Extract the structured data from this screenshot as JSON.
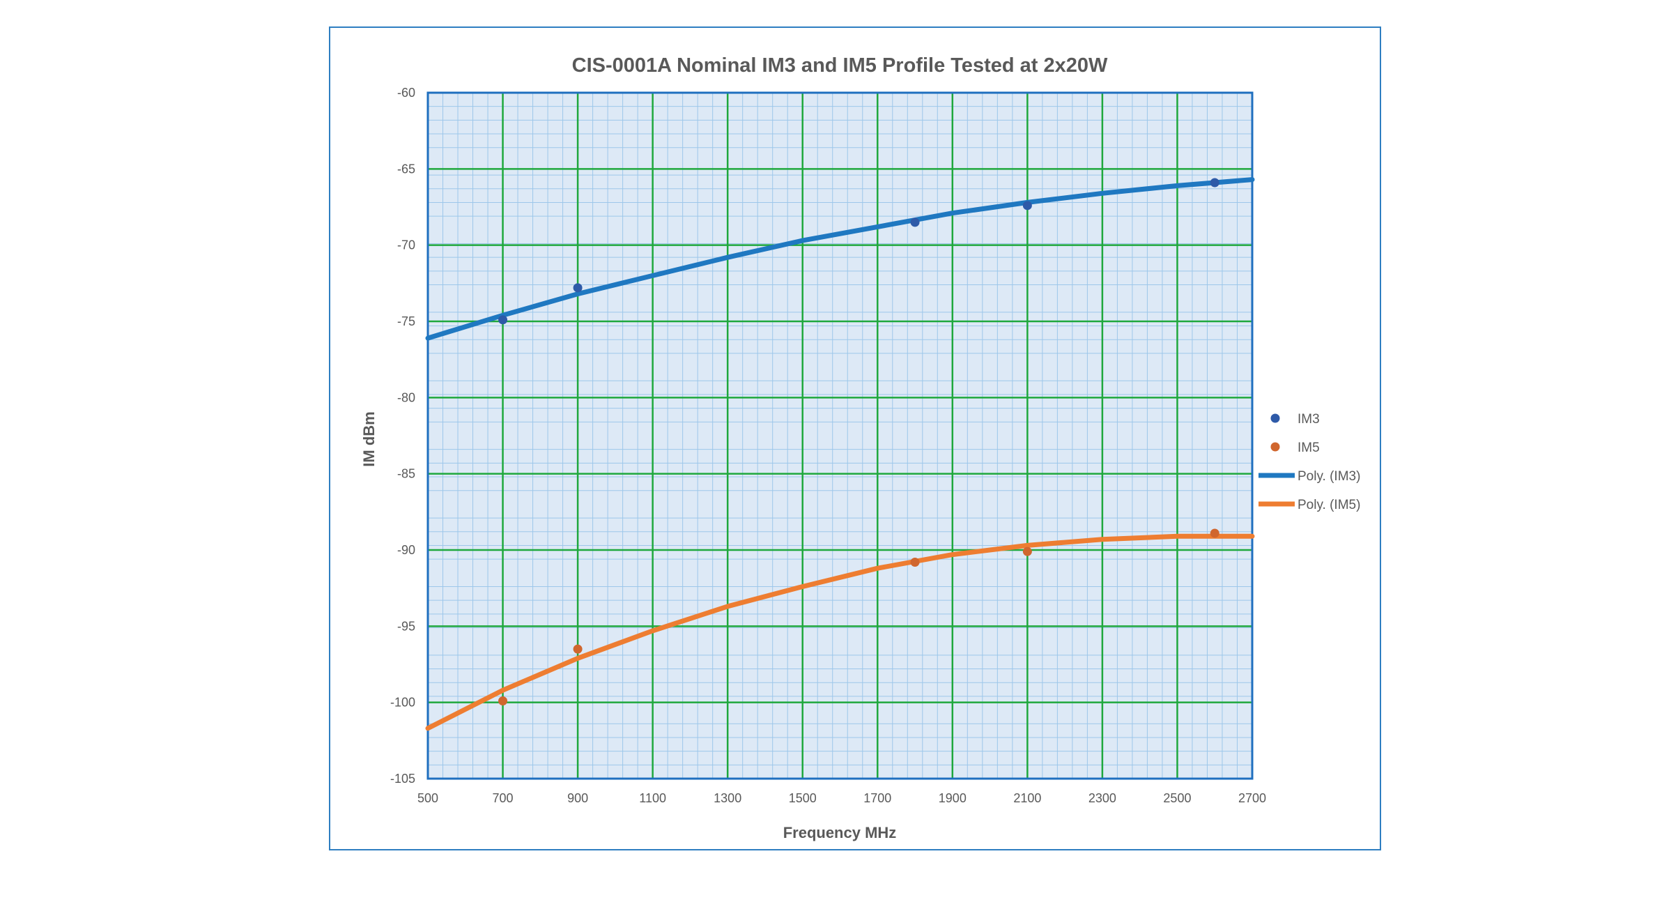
{
  "chart_data": {
    "type": "scatter",
    "title": "CIS-0001A Nominal IM3 and IM5 Profile Tested at 2x20W",
    "xlabel": "Frequency MHz",
    "ylabel": "IM dBm",
    "xlim": [
      500,
      2700
    ],
    "ylim": [
      -105,
      -60
    ],
    "x_ticks": [
      500,
      700,
      900,
      1100,
      1300,
      1500,
      1700,
      1900,
      2100,
      2300,
      2500,
      2700
    ],
    "y_ticks": [
      -60,
      -65,
      -70,
      -75,
      -80,
      -85,
      -90,
      -95,
      -100,
      -105
    ],
    "x_tick_labels": [
      "500",
      "700",
      "900",
      "1100",
      "1300",
      "1500",
      "1700",
      "1900",
      "2100",
      "2300",
      "2500",
      "2700"
    ],
    "y_tick_labels": [
      "-60",
      "-65",
      "-70",
      "-75",
      "-80",
      "-85",
      "-90",
      "-95",
      "-100",
      "-105"
    ],
    "grid": {
      "major": true,
      "minor": true
    },
    "legend_position": "right",
    "series": [
      {
        "name": "IM3",
        "kind": "points",
        "color": "#2e5aa8",
        "x": [
          700,
          900,
          1800,
          2100,
          2600
        ],
        "y": [
          -74.9,
          -72.8,
          -68.5,
          -67.4,
          -65.9
        ]
      },
      {
        "name": "IM5",
        "kind": "points",
        "color": "#d0662e",
        "x": [
          700,
          900,
          1800,
          2100,
          2600
        ],
        "y": [
          -99.9,
          -96.5,
          -90.8,
          -90.1,
          -88.9
        ]
      },
      {
        "name": "Poly. (IM3)",
        "kind": "trendline",
        "color": "#1f78c1",
        "x": [
          500,
          700,
          900,
          1100,
          1300,
          1500,
          1700,
          1900,
          2100,
          2300,
          2500,
          2700
        ],
        "y": [
          -76.1,
          -74.6,
          -73.2,
          -72.0,
          -70.8,
          -69.7,
          -68.8,
          -67.9,
          -67.2,
          -66.6,
          -66.1,
          -65.7
        ]
      },
      {
        "name": "Poly. (IM5)",
        "kind": "trendline",
        "color": "#ee7d31",
        "x": [
          500,
          700,
          900,
          1100,
          1300,
          1500,
          1700,
          1900,
          2100,
          2300,
          2500,
          2700
        ],
        "y": [
          -101.7,
          -99.2,
          -97.1,
          -95.3,
          -93.7,
          -92.4,
          -91.2,
          -90.3,
          -89.7,
          -89.3,
          -89.1,
          -89.1
        ]
      }
    ]
  },
  "colors": {
    "plot_background": "#dde9f6",
    "major_grid": "#1fa83d",
    "minor_grid": "#9dc7ea",
    "plot_border": "#1f6fbf",
    "frame_border": "#2e7ec1"
  }
}
